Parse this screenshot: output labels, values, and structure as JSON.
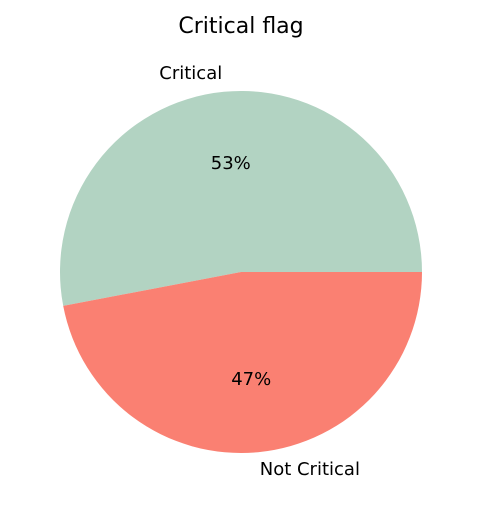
{
  "chart_data": {
    "type": "pie",
    "title": "Critical flag",
    "slices": [
      {
        "label": "Critical",
        "value": 53,
        "pct_label": "53%",
        "color": "#b2d3c2"
      },
      {
        "label": "Not Critical",
        "value": 47,
        "pct_label": "47%",
        "color": "#fa8072"
      }
    ],
    "start_angle": "3 o'clock",
    "direction": "counterclockwise",
    "legend": "none"
  }
}
